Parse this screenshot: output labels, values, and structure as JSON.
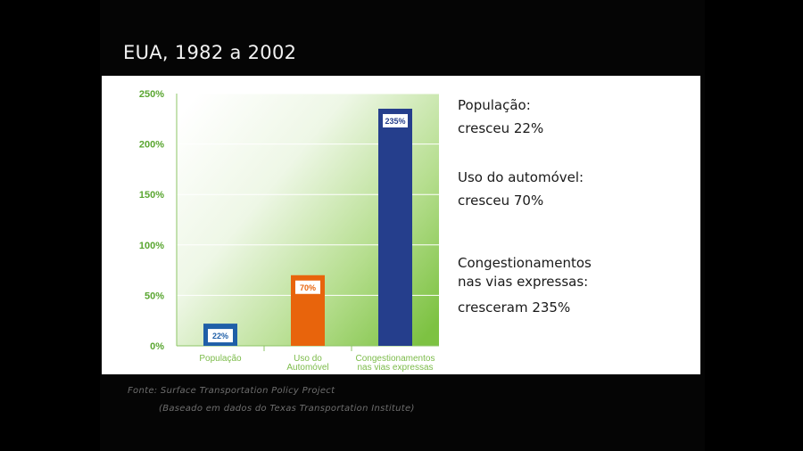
{
  "slide": {
    "title": "EUA, 1982 a 2002",
    "source_line": "Fonte: Surface Transportation Policy Project",
    "source_note": "(Baseado em dados do Texas Transportation Institute)"
  },
  "stats": [
    {
      "label": "População:",
      "value": "cresceu 22%"
    },
    {
      "label": "Uso do automóvel:",
      "value": "cresceu 70%"
    },
    {
      "label": "Congestionamentos\nnas vias expressas:",
      "value": "cresceram 235%"
    }
  ],
  "chart_data": {
    "type": "bar",
    "categories": [
      [
        "População"
      ],
      [
        "Uso do",
        "Automóvel"
      ],
      [
        "Congestionamentos",
        "nas vias expressas"
      ]
    ],
    "values": [
      22,
      70,
      235
    ],
    "data_labels": [
      "22%",
      "70%",
      "235%"
    ],
    "bar_colors": [
      "#1f5fa8",
      "#e8640c",
      "#253e8c"
    ],
    "yticks": [
      "0%",
      "50%",
      "100%",
      "150%",
      "200%",
      "250%"
    ],
    "ylim": [
      0,
      250
    ],
    "grid": true,
    "colors": {
      "tick_labels": "#5aa631",
      "category_labels": "#7cbb4a",
      "plot_green": "#7dc242",
      "grid": "#ffffff"
    }
  }
}
